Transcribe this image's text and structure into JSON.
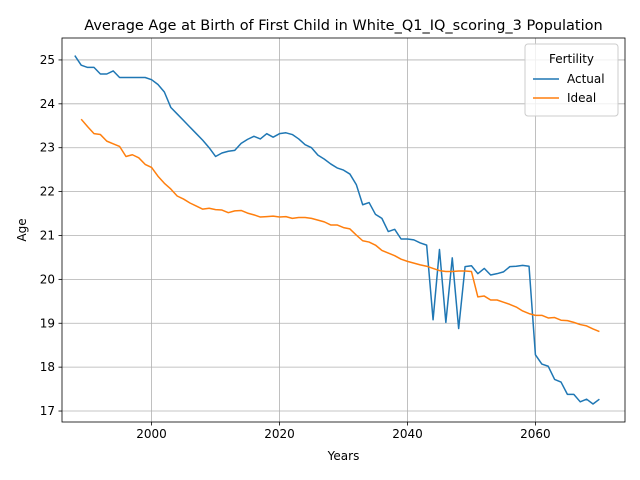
{
  "chart_data": {
    "type": "line",
    "title": "Average Age at Birth of First Child in White_Q1_IQ_scoring_3 Population",
    "xlabel": "Years",
    "ylabel": "Age",
    "xlim": [
      1986,
      2074
    ],
    "ylim": [
      16.75,
      25.5
    ],
    "xticks": [
      2000,
      2020,
      2040,
      2060
    ],
    "yticks": [
      17,
      18,
      19,
      20,
      21,
      22,
      23,
      24,
      25
    ],
    "grid": true,
    "legend": {
      "title": "Fertility",
      "placement": "top-right"
    },
    "colors": {
      "Actual": "#1f77b4",
      "Ideal": "#ff7f0e"
    },
    "series": [
      {
        "name": "Actual",
        "x": [
          1988,
          1989,
          1990,
          1991,
          1992,
          1993,
          1994,
          1995,
          1996,
          1997,
          1998,
          1999,
          2000,
          2001,
          2002,
          2003,
          2004,
          2005,
          2006,
          2007,
          2008,
          2009,
          2010,
          2011,
          2012,
          2013,
          2014,
          2015,
          2016,
          2017,
          2018,
          2019,
          2020,
          2021,
          2022,
          2023,
          2024,
          2025,
          2026,
          2027,
          2028,
          2029,
          2030,
          2031,
          2032,
          2033,
          2034,
          2035,
          2036,
          2037,
          2038,
          2039,
          2040,
          2041,
          2042,
          2043,
          2044,
          2045,
          2046,
          2047,
          2048,
          2049,
          2050,
          2051,
          2052,
          2053,
          2054,
          2055,
          2056,
          2057,
          2058,
          2059,
          2060,
          2061,
          2062,
          2063,
          2064,
          2065,
          2066,
          2067,
          2068,
          2069,
          2070
        ],
        "values": [
          25.1,
          24.88,
          24.83,
          24.83,
          24.68,
          24.68,
          24.75,
          24.6,
          24.6,
          24.6,
          24.6,
          24.6,
          24.55,
          24.44,
          24.27,
          23.92,
          23.77,
          23.62,
          23.47,
          23.32,
          23.17,
          23.0,
          22.8,
          22.88,
          22.92,
          22.94,
          23.1,
          23.19,
          23.26,
          23.2,
          23.32,
          23.24,
          23.32,
          23.34,
          23.3,
          23.2,
          23.07,
          23.0,
          22.83,
          22.74,
          22.63,
          22.54,
          22.49,
          22.4,
          22.16,
          21.7,
          21.75,
          21.48,
          21.39,
          21.09,
          21.14,
          20.92,
          20.92,
          20.9,
          20.83,
          20.78,
          19.08,
          20.68,
          19.02,
          20.49,
          18.88,
          20.29,
          20.31,
          20.13,
          20.25,
          20.1,
          20.13,
          20.17,
          20.29,
          20.3,
          20.32,
          20.3,
          18.28,
          18.07,
          18.02,
          17.72,
          17.66,
          17.38,
          17.38,
          17.21,
          17.27,
          17.16,
          17.27
        ]
      },
      {
        "name": "Ideal",
        "x": [
          1989,
          1990,
          1991,
          1992,
          1993,
          1994,
          1995,
          1996,
          1997,
          1998,
          1999,
          2000,
          2001,
          2002,
          2003,
          2004,
          2005,
          2006,
          2007,
          2008,
          2009,
          2010,
          2011,
          2012,
          2013,
          2014,
          2015,
          2016,
          2017,
          2018,
          2019,
          2020,
          2021,
          2022,
          2023,
          2024,
          2025,
          2026,
          2027,
          2028,
          2029,
          2030,
          2031,
          2032,
          2033,
          2034,
          2035,
          2036,
          2037,
          2038,
          2039,
          2040,
          2041,
          2042,
          2043,
          2044,
          2045,
          2046,
          2047,
          2048,
          2049,
          2050,
          2051,
          2052,
          2053,
          2054,
          2055,
          2056,
          2057,
          2058,
          2059,
          2060,
          2061,
          2062,
          2063,
          2064,
          2065,
          2066,
          2067,
          2068,
          2069,
          2070
        ],
        "values": [
          23.65,
          23.48,
          23.32,
          23.3,
          23.15,
          23.09,
          23.03,
          22.8,
          22.84,
          22.77,
          22.62,
          22.55,
          22.35,
          22.19,
          22.06,
          21.9,
          21.83,
          21.74,
          21.67,
          21.6,
          21.62,
          21.59,
          21.58,
          21.52,
          21.56,
          21.57,
          21.51,
          21.47,
          21.42,
          21.43,
          21.44,
          21.42,
          21.43,
          21.39,
          21.41,
          21.41,
          21.39,
          21.35,
          21.31,
          21.24,
          21.24,
          21.18,
          21.15,
          21.01,
          20.88,
          20.85,
          20.78,
          20.66,
          20.6,
          20.54,
          20.46,
          20.41,
          20.37,
          20.33,
          20.3,
          20.25,
          20.2,
          20.18,
          20.18,
          20.19,
          20.19,
          20.18,
          19.6,
          19.62,
          19.53,
          19.53,
          19.48,
          19.43,
          19.37,
          19.28,
          19.22,
          19.18,
          19.18,
          19.12,
          19.13,
          19.07,
          19.06,
          19.02,
          18.97,
          18.94,
          18.87,
          18.81
        ]
      }
    ]
  }
}
